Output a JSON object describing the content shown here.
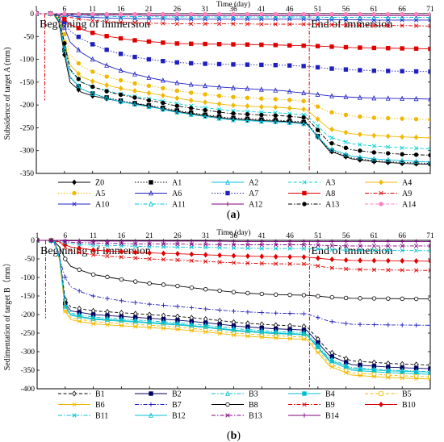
{
  "chart_data": [
    {
      "type": "line",
      "panel_label": "a",
      "xlabel": "Time (day)",
      "ylabel": "Subsidence of target A (mm)",
      "xlim": [
        1,
        71
      ],
      "ylim": [
        -350,
        0
      ],
      "x_ticks": [
        1,
        6,
        11,
        16,
        21,
        26,
        31,
        36,
        41,
        46,
        51,
        56,
        61,
        66,
        71
      ],
      "y_ticks": [
        0,
        -50,
        -100,
        -150,
        -200,
        -250,
        -300,
        -350
      ],
      "annotations": [
        {
          "text": "Beginning of immersion",
          "x": 2.5
        },
        {
          "text": "End of immersion",
          "x": 49.5
        }
      ],
      "legend_position": "bottom",
      "series": [
        {
          "name": "Z0",
          "color": "#000000",
          "marker": "diamond",
          "dash": "solid",
          "values": [
            0,
            0,
            0,
            0,
            -18,
            -90,
            -150,
            -172,
            -180,
            -185,
            -190,
            -195,
            -198,
            -202,
            -208,
            -212,
            -220,
            -230,
            -234,
            -236,
            -238,
            -240,
            -300,
            -318,
            -324,
            -328,
            -330
          ]
        },
        {
          "name": "A1",
          "color": "#000000",
          "marker": "square",
          "dash": "dot",
          "values": [
            0,
            0,
            0,
            0,
            -15,
            -80,
            -140,
            -165,
            -175,
            -182,
            -188,
            -193,
            -197,
            -201,
            -205,
            -210,
            -218,
            -228,
            -232,
            -234,
            -236,
            -238,
            -298,
            -316,
            -322,
            -326,
            -328
          ]
        },
        {
          "name": "A2",
          "color": "#00bfe0",
          "marker": "triangle",
          "dash": "solid",
          "values": [
            0,
            0,
            0,
            0,
            -14,
            -78,
            -138,
            -165,
            -175,
            -183,
            -190,
            -195,
            -200,
            -204,
            -208,
            -214,
            -222,
            -232,
            -236,
            -238,
            -240,
            -242,
            -295,
            -312,
            -318,
            -322,
            -325
          ]
        },
        {
          "name": "A3",
          "color": "#00d0d0",
          "marker": "x",
          "dash": "dash",
          "values": [
            0,
            0,
            0,
            0,
            -12,
            -70,
            -125,
            -150,
            -160,
            -167,
            -173,
            -178,
            -182,
            -186,
            -190,
            -195,
            -203,
            -212,
            -216,
            -218,
            -220,
            -222,
            -270,
            -285,
            -290,
            -294,
            -296
          ]
        },
        {
          "name": "A4",
          "color": "#f0b800",
          "marker": "diamond",
          "dash": "solid",
          "values": [
            0,
            0,
            0,
            0,
            -10,
            -62,
            -112,
            -138,
            -148,
            -155,
            -161,
            -166,
            -170,
            -174,
            -178,
            -183,
            -191,
            -200,
            -204,
            -206,
            -208,
            -210,
            -252,
            -263,
            -267,
            -270,
            -272
          ]
        },
        {
          "name": "A5",
          "color": "#f0b800",
          "marker": "circle",
          "dash": "dot",
          "values": [
            0,
            0,
            0,
            0,
            -8,
            -45,
            -90,
            -115,
            -127,
            -136,
            -143,
            -149,
            -154,
            -158,
            -162,
            -167,
            -174,
            -182,
            -186,
            -188,
            -190,
            -192,
            -215,
            -224,
            -228,
            -230,
            -232
          ]
        },
        {
          "name": "A6",
          "color": "#2020c0",
          "marker": "triangle",
          "dash": "solid",
          "values": [
            0,
            0,
            0,
            0,
            -5,
            -30,
            -62,
            -85,
            -100,
            -111,
            -120,
            -128,
            -134,
            -140,
            -145,
            -150,
            -156,
            -162,
            -166,
            -169,
            -172,
            -174,
            -180,
            -183,
            -185,
            -186,
            -187
          ]
        },
        {
          "name": "A7",
          "color": "#2020c0",
          "marker": "square",
          "dash": "dot",
          "values": [
            0,
            0,
            0,
            0,
            -3,
            -18,
            -38,
            -55,
            -67,
            -77,
            -85,
            -91,
            -96,
            -100,
            -103,
            -106,
            -109,
            -111,
            -112,
            -113,
            -114,
            -115,
            -120,
            -123,
            -125,
            -126,
            -127
          ]
        },
        {
          "name": "A8",
          "color": "#e00000",
          "marker": "square",
          "dash": "solid",
          "values": [
            0,
            0,
            0,
            0,
            -2,
            -12,
            -24,
            -34,
            -42,
            -48,
            -52,
            -56,
            -59,
            -61,
            -63,
            -65,
            -66,
            -67,
            -68,
            -69,
            -70,
            -70,
            -72,
            -74,
            -75,
            -76,
            -77
          ]
        },
        {
          "name": "A9",
          "color": "#e00000",
          "marker": "x",
          "dash": "dashdot",
          "values": [
            0,
            0,
            0,
            0,
            -1,
            -4,
            -8,
            -12,
            -15,
            -17,
            -18,
            -19,
            -20,
            -21,
            -21,
            -22,
            -22,
            -22,
            -23,
            -23,
            -23,
            -23,
            -24,
            -25,
            -26,
            -26,
            -27
          ]
        },
        {
          "name": "A10",
          "color": "#2020c0",
          "marker": "x",
          "dash": "solid",
          "values": [
            0,
            0,
            0,
            0,
            -1,
            -3,
            -5,
            -7,
            -8,
            -9,
            -10,
            -10,
            -11,
            -11,
            -11,
            -12,
            -12,
            -12,
            -12,
            -12,
            -12,
            -12,
            -13,
            -13,
            -14,
            -14,
            -14
          ]
        },
        {
          "name": "A11",
          "color": "#00bfe0",
          "marker": "triangle",
          "dash": "dashdot",
          "values": [
            0,
            0,
            0,
            0,
            -1,
            -2,
            -3,
            -4,
            -5,
            -5,
            -6,
            -6,
            -6,
            -6,
            -7,
            -7,
            -7,
            -7,
            -7,
            -7,
            -7,
            -7,
            -8,
            -8,
            -8,
            -8,
            -8
          ]
        },
        {
          "name": "A12",
          "color": "#800080",
          "marker": "plus",
          "dash": "solid",
          "values": [
            0,
            0,
            0,
            0,
            0,
            -1,
            -2,
            -2,
            -3,
            -3,
            -3,
            -3,
            -3,
            -4,
            -4,
            -4,
            -4,
            -4,
            -4,
            -4,
            -4,
            -4,
            -4,
            -4,
            -4,
            -4,
            -4
          ]
        },
        {
          "name": "A13",
          "color": "#000000",
          "marker": "circle",
          "dash": "dashdot",
          "values": [
            0,
            0,
            0,
            0,
            -8,
            -65,
            -122,
            -150,
            -160,
            -168,
            -175,
            -180,
            -185,
            -190,
            -194,
            -200,
            -208,
            -218,
            -222,
            -224,
            -226,
            -228,
            -282,
            -298,
            -304,
            -308,
            -310
          ]
        },
        {
          "name": "A14",
          "color": "#ff80c0",
          "marker": "circle",
          "dash": "dash",
          "values": [
            0,
            0,
            0,
            0,
            0,
            0,
            -1,
            -1,
            -1,
            -1,
            -1,
            -1,
            -1,
            -1,
            -1,
            -1,
            -1,
            -1,
            -1,
            -1,
            -1,
            -1,
            -1,
            -1,
            -1,
            -1,
            -1
          ]
        }
      ],
      "x": [
        1,
        2,
        3,
        4,
        5,
        6,
        7,
        9,
        11,
        13,
        15,
        17,
        19,
        21,
        23,
        25,
        29,
        35,
        41,
        45,
        47,
        49,
        53,
        57,
        61,
        66,
        71
      ]
    },
    {
      "type": "line",
      "panel_label": "b",
      "xlabel": "Time (day)",
      "ylabel": "Sedimentation of target B（mm）",
      "xlim": [
        1,
        71
      ],
      "ylim": [
        -400,
        0
      ],
      "x_ticks": [
        1,
        6,
        11,
        16,
        21,
        26,
        31,
        36,
        41,
        46,
        51,
        56,
        61,
        66,
        71
      ],
      "y_ticks": [
        0,
        -50,
        -100,
        -150,
        -200,
        -250,
        -300,
        -350,
        -400
      ],
      "annotations": [
        {
          "text": "Beginning of immersion",
          "x": 2.5
        },
        {
          "text": "End of immersion",
          "x": 49.5
        }
      ],
      "legend_position": "bottom",
      "series": [
        {
          "name": "B1",
          "color": "#000000",
          "marker": "diamond-open",
          "dash": "dash",
          "values": [
            0,
            0,
            0,
            0,
            -40,
            -160,
            -180,
            -185,
            -190,
            -193,
            -196,
            -200,
            -205,
            -212,
            -222,
            -228,
            -232,
            -300,
            -325,
            -332,
            -336
          ]
        },
        {
          "name": "B2",
          "color": "#000060",
          "marker": "square",
          "dash": "solid",
          "values": [
            0,
            0,
            0,
            0,
            -45,
            -170,
            -190,
            -195,
            -200,
            -203,
            -206,
            -210,
            -215,
            -222,
            -232,
            -238,
            -242,
            -310,
            -335,
            -342,
            -346
          ]
        },
        {
          "name": "B3",
          "color": "#00c0d0",
          "marker": "triangle",
          "dash": "dashdot",
          "values": [
            0,
            0,
            0,
            0,
            -48,
            -175,
            -196,
            -202,
            -207,
            -210,
            -213,
            -217,
            -222,
            -229,
            -239,
            -245,
            -249,
            -318,
            -343,
            -350,
            -354
          ]
        },
        {
          "name": "B4",
          "color": "#00c0d0",
          "marker": "square",
          "dash": "solid",
          "values": [
            0,
            0,
            0,
            0,
            -50,
            -180,
            -202,
            -208,
            -213,
            -216,
            -219,
            -223,
            -228,
            -235,
            -245,
            -251,
            -255,
            -325,
            -350,
            -357,
            -361
          ]
        },
        {
          "name": "B5",
          "color": "#f0b800",
          "marker": "square-open",
          "dash": "dash",
          "values": [
            0,
            0,
            0,
            0,
            -52,
            -186,
            -208,
            -214,
            -219,
            -222,
            -225,
            -229,
            -234,
            -241,
            -251,
            -257,
            -261,
            -332,
            -357,
            -364,
            -368
          ]
        },
        {
          "name": "B6",
          "color": "#f0b800",
          "marker": "x",
          "dash": "solid",
          "values": [
            0,
            0,
            0,
            0,
            -54,
            -192,
            -214,
            -220,
            -225,
            -228,
            -231,
            -235,
            -240,
            -247,
            -257,
            -263,
            -267,
            -338,
            -363,
            -370,
            -374
          ]
        },
        {
          "name": "B7",
          "color": "#2020c0",
          "marker": "plus",
          "dash": "dashdot",
          "values": [
            0,
            0,
            0,
            -5,
            -50,
            -100,
            -125,
            -140,
            -150,
            -158,
            -165,
            -172,
            -178,
            -185,
            -192,
            -196,
            -198,
            -218,
            -226,
            -228,
            -229
          ]
        },
        {
          "name": "B8",
          "color": "#000000",
          "marker": "circle-open",
          "dash": "solid",
          "values": [
            0,
            0,
            0,
            -2,
            -18,
            -50,
            -70,
            -82,
            -92,
            -100,
            -108,
            -116,
            -123,
            -132,
            -141,
            -146,
            -148,
            -153,
            -156,
            -157,
            -158
          ]
        },
        {
          "name": "B9",
          "color": "#e00000",
          "marker": "x",
          "dash": "dashdot",
          "values": [
            0,
            0,
            0,
            -1,
            -6,
            -18,
            -28,
            -34,
            -39,
            -43,
            -46,
            -50,
            -53,
            -57,
            -61,
            -63,
            -64,
            -74,
            -78,
            -80,
            -81
          ]
        },
        {
          "name": "B10",
          "color": "#e00000",
          "marker": "diamond",
          "dash": "solid",
          "values": [
            0,
            0,
            0,
            -1,
            -4,
            -12,
            -18,
            -22,
            -26,
            -29,
            -31,
            -34,
            -36,
            -39,
            -42,
            -44,
            -45,
            -51,
            -54,
            -55,
            -56
          ]
        },
        {
          "name": "B11",
          "color": "#00c0d0",
          "marker": "x",
          "dash": "dashdot",
          "values": [
            0,
            0,
            0,
            0,
            -2,
            -6,
            -9,
            -11,
            -13,
            -14,
            -15,
            -17,
            -18,
            -19,
            -21,
            -22,
            -22,
            -25,
            -27,
            -27,
            -28
          ]
        },
        {
          "name": "B12",
          "color": "#00c0d0",
          "marker": "triangle",
          "dash": "solid",
          "values": [
            0,
            0,
            0,
            0,
            -50,
            -178,
            -200,
            -206,
            -211,
            -214,
            -217,
            -221,
            -226,
            -233,
            -243,
            -249,
            -253,
            -322,
            -346,
            -352,
            -355
          ]
        },
        {
          "name": "B13",
          "color": "#800080",
          "marker": "x",
          "dash": "dashdot",
          "values": [
            0,
            0,
            0,
            0,
            -1,
            -3,
            -5,
            -6,
            -7,
            -8,
            -9,
            -10,
            -10,
            -11,
            -12,
            -12,
            -12,
            -14,
            -15,
            -15,
            -15
          ]
        },
        {
          "name": "B14",
          "color": "#800080",
          "marker": "plus",
          "dash": "solid",
          "values": [
            0,
            0,
            0,
            0,
            0,
            -1,
            -1,
            -1,
            -2,
            -2,
            -2,
            -2,
            -2,
            -2,
            -3,
            -3,
            -3,
            -3,
            -3,
            -3,
            -3
          ]
        }
      ],
      "x": [
        1,
        2,
        3,
        4,
        5,
        6,
        7,
        9,
        11,
        14,
        17,
        21,
        26,
        31,
        37,
        43,
        49,
        53,
        57,
        64,
        71
      ]
    }
  ]
}
